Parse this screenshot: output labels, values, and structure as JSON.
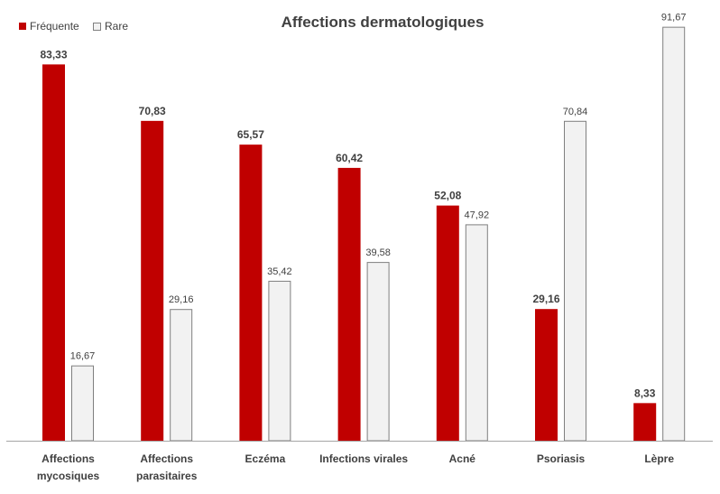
{
  "chart_data": {
    "type": "bar",
    "title": "Affections dermatologiques",
    "xlabel": "",
    "ylabel": "",
    "ylim": [
      0,
      100
    ],
    "grid": false,
    "legend": "top-left",
    "categories": [
      [
        "Affections",
        "mycosiques"
      ],
      [
        "Affections",
        "parasitaires"
      ],
      [
        "Eczéma"
      ],
      [
        "Infections virales"
      ],
      [
        "Acné"
      ],
      [
        "Psoriasis"
      ],
      [
        "Lèpre"
      ]
    ],
    "series": [
      {
        "name": "Fréquente",
        "color": "#c00000",
        "values": [
          83.33,
          70.83,
          65.57,
          60.42,
          52.08,
          29.16,
          8.33
        ],
        "labels": [
          "83,33",
          "70,83",
          "65,57",
          "60,42",
          "52,08",
          "29,16",
          "8,33"
        ]
      },
      {
        "name": "Rare",
        "color": "#f2f2f2",
        "values": [
          16.67,
          29.16,
          35.42,
          39.58,
          47.92,
          70.84,
          91.67
        ],
        "labels": [
          "16,67",
          "29,16",
          "35,42",
          "39,58",
          "47,92",
          "70,84",
          "91,67"
        ]
      }
    ]
  }
}
